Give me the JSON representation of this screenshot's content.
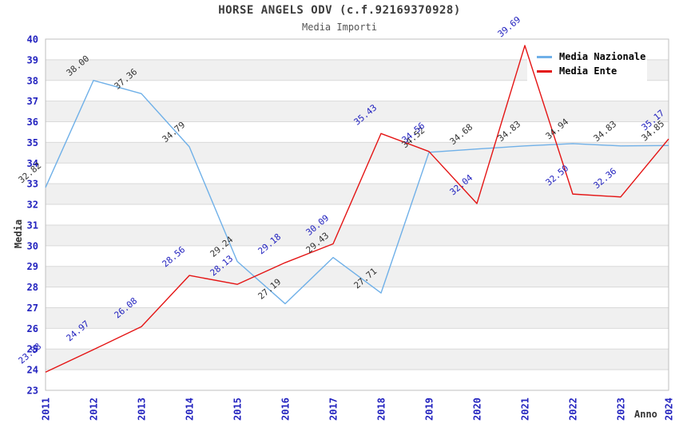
{
  "chart_data": {
    "type": "line",
    "title": "HORSE ANGELS ODV (c.f.92169370928)",
    "subtitle": "Media Importi",
    "xlabel": "Anno",
    "ylabel": "Media",
    "x": [
      "2011",
      "2012",
      "2013",
      "2014",
      "2015",
      "2016",
      "2017",
      "2018",
      "2019",
      "2020",
      "2021",
      "2022",
      "2023",
      "2024"
    ],
    "ylim": [
      23,
      40
    ],
    "y_tick_step": 1,
    "grid": true,
    "alternating_bands": true,
    "legend_position": "top-right",
    "value_label_decimals": 2,
    "series": [
      {
        "name": "Media Nazionale",
        "color": "#6fb0e8",
        "label_color": "#333333",
        "values": [
          32.82,
          38.0,
          37.36,
          34.79,
          29.24,
          27.19,
          29.43,
          27.71,
          34.52,
          34.68,
          34.83,
          34.94,
          34.83,
          34.85
        ]
      },
      {
        "name": "Media Ente",
        "color": "#e41414",
        "label_color": "#2323bf",
        "values": [
          23.88,
          24.97,
          26.08,
          28.56,
          28.13,
          29.18,
          30.09,
          35.43,
          34.56,
          32.04,
          39.69,
          32.5,
          32.36,
          35.17
        ]
      }
    ],
    "colors": {
      "background": "#ffffff",
      "band": "#f0f0f0",
      "grid": "#d9d9d9",
      "plot_border": "#bfbfbf",
      "axis_label": "#2323bf",
      "title": "#3c3c3c",
      "subtitle": "#555555",
      "legend_text": "#000000",
      "legend_bg": "#ffffff"
    }
  }
}
